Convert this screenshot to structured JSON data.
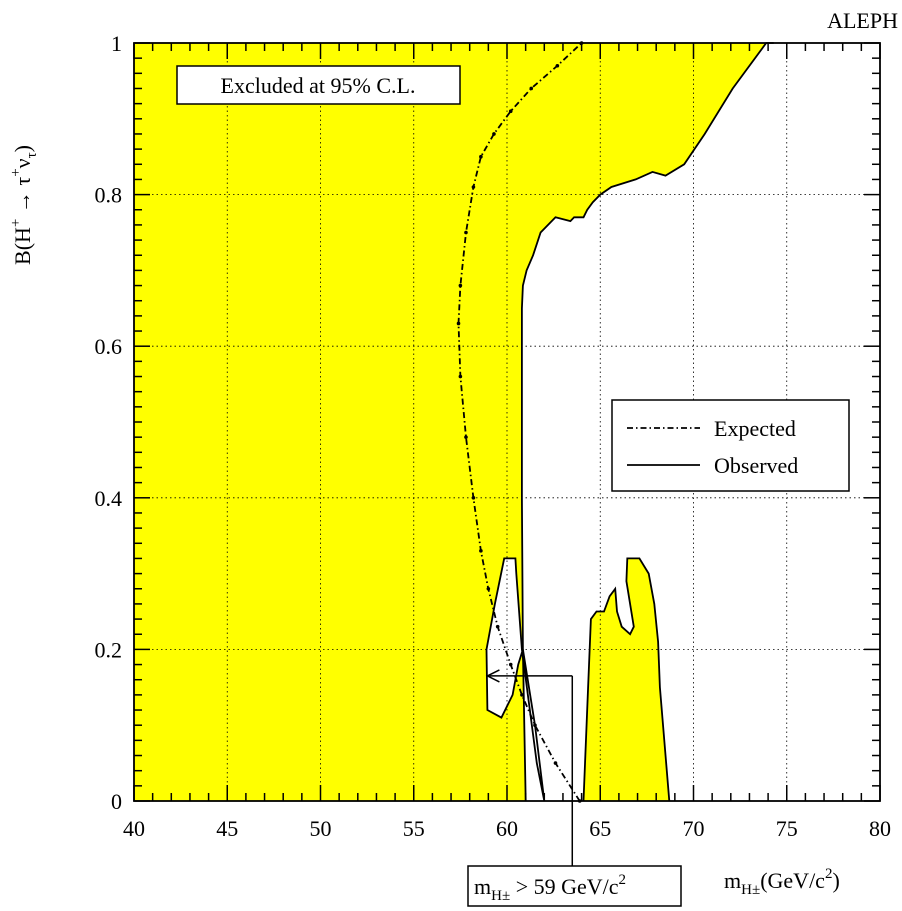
{
  "chart_data": {
    "type": "area",
    "experiment_label": "ALEPH",
    "xlabel": {
      "main": "m",
      "sub": "H±",
      "rest": "(GeV/c",
      "sup": "2",
      "close": ")"
    },
    "ylabel": {
      "a": "B(H",
      "sup1": "+",
      "arrow": " → τ",
      "sup2": "+",
      "nu": "ν",
      "sub": "τ",
      "close": ")"
    },
    "x_ticks": [
      "40",
      "45",
      "50",
      "55",
      "60",
      "65",
      "70",
      "75",
      "80"
    ],
    "y_ticks": [
      "0",
      "0.2",
      "0.4",
      "0.6",
      "0.8",
      "1"
    ],
    "xlim": [
      40,
      80
    ],
    "ylim": [
      0,
      1
    ],
    "grid": true,
    "legend_position": "right-middle",
    "excluded_label": "Excluded at 95% C.L.",
    "limit_box": {
      "m": "m",
      "sub": "H±",
      "rest": " > 59 GeV/c",
      "sup": "2"
    },
    "colors": {
      "excluded_fill": "#ffff00",
      "line": "#000000",
      "grid": "#000000"
    },
    "series": [
      {
        "name": "Observed",
        "style": "solid",
        "x": [
          40,
          61,
          60.85,
          60.8,
          60.8,
          60.8,
          60.85,
          61.05,
          61.4,
          61.8,
          62.6,
          63.4,
          63.6,
          64.1,
          64.3,
          64.6,
          65,
          65.6,
          66.9,
          67.8,
          68.5,
          69.5,
          70.6,
          72.1,
          73.9,
          74.3,
          40
        ],
        "y": [
          0,
          0,
          0.2,
          0.4,
          0.6,
          0.65,
          0.68,
          0.7,
          0.72,
          0.75,
          0.77,
          0.765,
          0.77,
          0.77,
          0.78,
          0.79,
          0.8,
          0.81,
          0.82,
          0.83,
          0.825,
          0.84,
          0.88,
          0.94,
          1.0,
          1.0,
          1.0
        ]
      },
      {
        "name": "Observed",
        "style": "solid",
        "x": [
          62,
          61.6,
          60.8,
          60.5,
          60.45,
          59.85,
          59.35,
          58.9,
          58.95,
          59.7,
          60.3,
          60.6,
          60.85,
          61.5,
          62
        ],
        "y": [
          0,
          0.05,
          0.2,
          0.3,
          0.32,
          0.32,
          0.26,
          0.2,
          0.12,
          0.11,
          0.14,
          0.18,
          0.2,
          0.1,
          0
        ]
      },
      {
        "name": "Observed",
        "style": "solid",
        "x": [
          64.1,
          64.35,
          64.5,
          64.8,
          65.2,
          65.5,
          65.8,
          65.9,
          66.15,
          66.6,
          66.8,
          66.4,
          66.45,
          67.1,
          67.6,
          67.9,
          68.1,
          68.2,
          68.7
        ],
        "y": [
          0,
          0.15,
          0.24,
          0.25,
          0.25,
          0.27,
          0.28,
          0.25,
          0.23,
          0.22,
          0.23,
          0.29,
          0.32,
          0.32,
          0.3,
          0.26,
          0.21,
          0.15,
          0
        ]
      },
      {
        "name": "Expected",
        "style": "dashdot",
        "x": [
          63.9,
          62.6,
          61.5,
          60.8,
          60.2,
          59.5,
          59,
          58.6,
          58.2,
          57.8,
          57.5,
          57.4,
          57.5,
          57.8,
          58.2,
          58.6,
          59.3,
          60.2,
          61.3,
          62.7,
          64
        ],
        "y": [
          0,
          0.05,
          0.1,
          0.14,
          0.18,
          0.23,
          0.28,
          0.33,
          0.4,
          0.48,
          0.56,
          0.63,
          0.68,
          0.75,
          0.81,
          0.85,
          0.88,
          0.91,
          0.94,
          0.97,
          1.0
        ]
      }
    ],
    "legend": [
      {
        "label": "Expected",
        "style": "dashdot"
      },
      {
        "label": "Observed",
        "style": "solid"
      }
    ],
    "arrow_from": [
      63.5,
      0.165
    ],
    "arrow_to": [
      58.95,
      0.165
    ]
  }
}
